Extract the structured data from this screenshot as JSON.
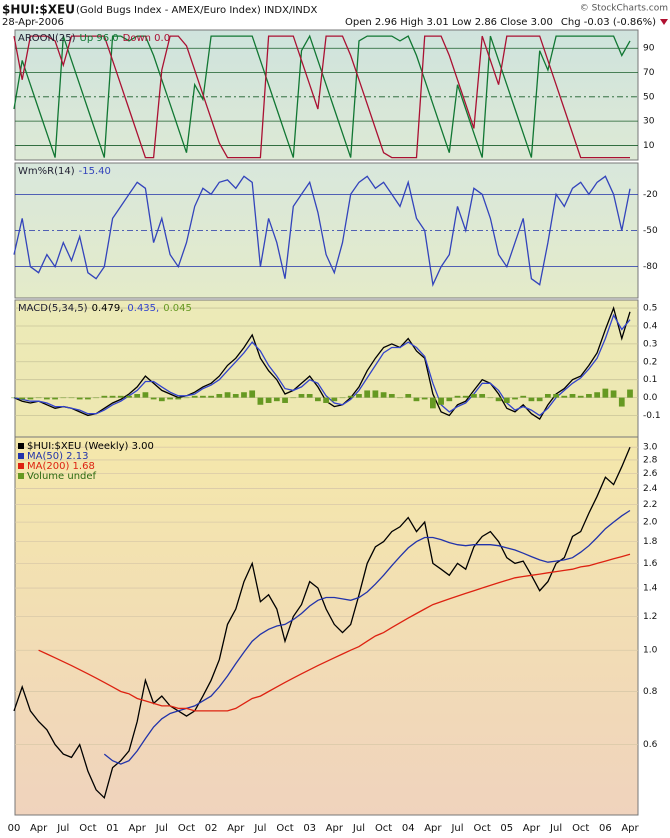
{
  "header": {
    "symbol": "$HUI:$XEU",
    "name": "(Gold Bugs Index - AMEX/Euro Index) INDX/INDX",
    "copyright": "© StockCharts.com",
    "date": "28-Apr-2006",
    "quote": "Open 2.96  High 3.01  Low 2.86  Close 3.00",
    "change": "Chg -0.03 (-0.86%)"
  },
  "chart_data": [
    {
      "type": "line",
      "title": "AROON(25)",
      "ylim": [
        -2,
        105
      ],
      "yticks": [
        10,
        30,
        50,
        70,
        90
      ],
      "grid": true,
      "grid_color": "#1a5c2a",
      "dashed_middle_grid": true,
      "series": [
        {
          "name": "Up 96.0",
          "color": "#117733",
          "values": [
            40,
            80,
            60,
            40,
            20,
            0,
            100,
            80,
            60,
            40,
            20,
            0,
            100,
            100,
            96,
            100,
            100,
            84,
            64,
            44,
            24,
            4,
            60,
            48,
            100,
            100,
            100,
            100,
            100,
            100,
            80,
            60,
            40,
            20,
            0,
            88,
            100,
            80,
            60,
            40,
            20,
            0,
            96,
            100,
            100,
            100,
            100,
            96,
            100,
            84,
            64,
            44,
            24,
            4,
            60,
            40,
            20,
            0,
            100,
            80,
            60,
            40,
            20,
            0,
            88,
            72,
            100,
            100,
            100,
            100,
            100,
            100,
            100,
            100,
            84,
            96
          ]
        },
        {
          "name": "Down 0.0",
          "color": "#aa1133",
          "values": [
            100,
            64,
            100,
            100,
            100,
            96,
            76,
            100,
            100,
            100,
            100,
            100,
            80,
            60,
            40,
            20,
            0,
            0,
            72,
            100,
            100,
            92,
            72,
            52,
            32,
            12,
            0,
            0,
            0,
            0,
            0,
            100,
            100,
            100,
            100,
            80,
            60,
            40,
            100,
            100,
            100,
            84,
            64,
            44,
            24,
            4,
            0,
            0,
            0,
            0,
            100,
            100,
            100,
            84,
            64,
            44,
            24,
            100,
            80,
            60,
            100,
            100,
            100,
            100,
            100,
            80,
            60,
            40,
            20,
            0,
            0,
            0,
            0,
            0,
            0,
            0
          ]
        }
      ]
    },
    {
      "type": "line",
      "title": "Wm%R(14)",
      "ylim": [
        -106,
        6
      ],
      "yticks": [
        -20,
        -50,
        -80
      ],
      "grid": true,
      "grid_color": "#2233aa",
      "dashed_middle_grid": true,
      "series": [
        {
          "name": "-15.40",
          "color": "#3344bb",
          "values": [
            -70,
            -40,
            -80,
            -85,
            -70,
            -80,
            -60,
            -75,
            -55,
            -85,
            -90,
            -80,
            -40,
            -30,
            -20,
            -10,
            -15,
            -60,
            -40,
            -70,
            -80,
            -60,
            -30,
            -15,
            -20,
            -10,
            -8,
            -15,
            -5,
            -10,
            -80,
            -40,
            -60,
            -90,
            -30,
            -20,
            -10,
            -35,
            -70,
            -85,
            -60,
            -20,
            -10,
            -5,
            -15,
            -10,
            -20,
            -30,
            -10,
            -40,
            -50,
            -95,
            -80,
            -70,
            -30,
            -50,
            -15,
            -20,
            -40,
            -70,
            -80,
            -60,
            -40,
            -90,
            -95,
            -60,
            -20,
            -30,
            -15,
            -10,
            -20,
            -10,
            -5,
            -20,
            -50,
            -15.4
          ]
        }
      ]
    },
    {
      "type": "line",
      "title": "MACD(5,34,5)",
      "ylim": [
        -0.22,
        0.545
      ],
      "yticks": [
        {
          "value": -0.1,
          "label": "-0.1"
        },
        {
          "value": 0,
          "label": "0.0"
        },
        0.1,
        0.2,
        0.3,
        0.4,
        0.5
      ],
      "grid": true,
      "grid_color": "#c9c49a",
      "series": [
        {
          "name": "0.479,",
          "color": "#000000",
          "values": [
            0.0,
            -0.02,
            -0.03,
            -0.02,
            -0.04,
            -0.06,
            -0.05,
            -0.06,
            -0.08,
            -0.1,
            -0.09,
            -0.06,
            -0.03,
            -0.01,
            0.02,
            0.06,
            0.12,
            0.08,
            0.04,
            0.02,
            0.0,
            0.01,
            0.03,
            0.06,
            0.08,
            0.12,
            0.18,
            0.22,
            0.28,
            0.35,
            0.22,
            0.15,
            0.1,
            0.02,
            0.04,
            0.08,
            0.12,
            0.06,
            -0.02,
            -0.05,
            -0.04,
            0.0,
            0.06,
            0.15,
            0.22,
            0.28,
            0.3,
            0.28,
            0.33,
            0.26,
            0.22,
            0.02,
            -0.08,
            -0.1,
            -0.04,
            -0.02,
            0.04,
            0.1,
            0.08,
            0.02,
            -0.06,
            -0.08,
            -0.04,
            -0.09,
            -0.12,
            -0.04,
            0.02,
            0.05,
            0.1,
            0.12,
            0.18,
            0.25,
            0.38,
            0.5,
            0.33,
            0.479
          ]
        },
        {
          "name": "0.435,",
          "color": "#3344cc",
          "values": [
            0.0,
            -0.01,
            -0.02,
            -0.02,
            -0.03,
            -0.05,
            -0.05,
            -0.06,
            -0.07,
            -0.09,
            -0.09,
            -0.07,
            -0.04,
            -0.02,
            0.01,
            0.04,
            0.09,
            0.09,
            0.06,
            0.03,
            0.01,
            0.01,
            0.02,
            0.05,
            0.07,
            0.1,
            0.15,
            0.2,
            0.25,
            0.31,
            0.26,
            0.18,
            0.12,
            0.05,
            0.04,
            0.06,
            0.1,
            0.08,
            0.01,
            -0.03,
            -0.04,
            -0.01,
            0.04,
            0.11,
            0.18,
            0.25,
            0.28,
            0.28,
            0.31,
            0.28,
            0.23,
            0.08,
            -0.04,
            -0.08,
            -0.05,
            -0.03,
            0.02,
            0.08,
            0.08,
            0.04,
            -0.03,
            -0.07,
            -0.05,
            -0.07,
            -0.1,
            -0.06,
            0.0,
            0.04,
            0.08,
            0.11,
            0.16,
            0.22,
            0.33,
            0.46,
            0.38,
            0.435
          ]
        },
        {
          "name": "0.045",
          "color": "#669922",
          "style": "bar",
          "values": [
            0.0,
            -0.01,
            -0.01,
            0.0,
            -0.01,
            -0.01,
            0.0,
            0.0,
            -0.01,
            -0.01,
            0.0,
            0.01,
            0.01,
            0.01,
            0.01,
            0.02,
            0.03,
            -0.01,
            -0.02,
            -0.01,
            -0.01,
            0.0,
            0.01,
            0.01,
            0.01,
            0.02,
            0.03,
            0.02,
            0.03,
            0.04,
            -0.04,
            -0.03,
            -0.02,
            -0.03,
            0.0,
            0.02,
            0.02,
            -0.02,
            -0.03,
            -0.02,
            0.0,
            0.01,
            0.02,
            0.04,
            0.04,
            0.03,
            0.02,
            0.0,
            0.02,
            -0.02,
            -0.01,
            -0.06,
            -0.04,
            -0.02,
            0.01,
            0.01,
            0.02,
            0.02,
            0.0,
            -0.02,
            -0.03,
            -0.01,
            0.01,
            -0.02,
            -0.02,
            0.02,
            0.02,
            0.01,
            0.02,
            0.01,
            0.02,
            0.03,
            0.05,
            0.04,
            -0.05,
            0.045
          ]
        }
      ]
    },
    {
      "type": "line",
      "log_scale": true,
      "legend": "stacked",
      "ylim": [
        0.41,
        3.17
      ],
      "yticks": [
        0.6,
        0.8,
        {
          "value": 1,
          "label": "1.0"
        },
        1.2,
        1.4,
        1.6,
        1.8,
        {
          "value": 2,
          "label": "2.0"
        },
        2.2,
        2.4,
        2.6,
        2.8,
        {
          "value": 3,
          "label": "3.0"
        }
      ],
      "grid": true,
      "grid_color": "#d9c9a8",
      "categories": [
        "00",
        null,
        null,
        "Apr",
        null,
        null,
        "Jul",
        null,
        null,
        "Oct",
        null,
        null,
        "01",
        null,
        null,
        "Apr",
        null,
        null,
        "Jul",
        null,
        null,
        "Oct",
        null,
        null,
        "02",
        null,
        null,
        "Apr",
        null,
        null,
        "Jul",
        null,
        null,
        "Oct",
        null,
        null,
        "03",
        null,
        null,
        "Apr",
        null,
        null,
        "Jul",
        null,
        null,
        "Oct",
        null,
        null,
        "04",
        null,
        null,
        "Apr",
        null,
        null,
        "Jul",
        null,
        null,
        "Oct",
        null,
        null,
        "05",
        null,
        null,
        "Apr",
        null,
        null,
        "Jul",
        null,
        null,
        "Oct",
        null,
        null,
        "06",
        null,
        null,
        "Apr"
      ],
      "series": [
        {
          "name": "$HUI:$XEU (Weekly) 3.00",
          "color": "#000000",
          "values": [
            0.72,
            0.82,
            0.72,
            0.68,
            0.65,
            0.6,
            0.57,
            0.56,
            0.6,
            0.52,
            0.47,
            0.45,
            0.53,
            0.55,
            0.58,
            0.68,
            0.85,
            0.75,
            0.78,
            0.74,
            0.72,
            0.7,
            0.72,
            0.78,
            0.85,
            0.95,
            1.15,
            1.25,
            1.45,
            1.6,
            1.3,
            1.35,
            1.25,
            1.05,
            1.2,
            1.28,
            1.45,
            1.4,
            1.25,
            1.15,
            1.1,
            1.15,
            1.35,
            1.6,
            1.75,
            1.8,
            1.9,
            1.95,
            2.05,
            1.9,
            2.0,
            1.6,
            1.55,
            1.5,
            1.6,
            1.55,
            1.75,
            1.85,
            1.9,
            1.8,
            1.65,
            1.6,
            1.62,
            1.5,
            1.38,
            1.45,
            1.6,
            1.65,
            1.85,
            1.9,
            2.1,
            2.3,
            2.55,
            2.45,
            2.7,
            3.0
          ]
        },
        {
          "name": "MA(50) 2.13",
          "color": "#2233aa",
          "values": [
            null,
            null,
            null,
            null,
            null,
            null,
            null,
            null,
            null,
            null,
            null,
            0.57,
            0.55,
            0.54,
            0.55,
            0.58,
            0.62,
            0.66,
            0.69,
            0.71,
            0.72,
            0.73,
            0.74,
            0.76,
            0.78,
            0.82,
            0.87,
            0.93,
            0.99,
            1.05,
            1.09,
            1.12,
            1.14,
            1.15,
            1.18,
            1.22,
            1.27,
            1.31,
            1.33,
            1.33,
            1.32,
            1.31,
            1.33,
            1.37,
            1.43,
            1.5,
            1.58,
            1.66,
            1.74,
            1.8,
            1.84,
            1.84,
            1.82,
            1.79,
            1.77,
            1.76,
            1.77,
            1.77,
            1.77,
            1.76,
            1.74,
            1.72,
            1.69,
            1.66,
            1.63,
            1.61,
            1.62,
            1.63,
            1.65,
            1.7,
            1.76,
            1.84,
            1.93,
            2.0,
            2.07,
            2.13
          ]
        },
        {
          "name": "MA(200) 1.68",
          "color": "#dd2211",
          "values": [
            null,
            null,
            null,
            1.0,
            0.98,
            0.96,
            0.94,
            0.92,
            0.9,
            0.88,
            0.86,
            0.84,
            0.82,
            0.8,
            0.79,
            0.77,
            0.76,
            0.75,
            0.74,
            0.74,
            0.73,
            0.73,
            0.72,
            0.72,
            0.72,
            0.72,
            0.72,
            0.73,
            0.75,
            0.77,
            0.78,
            0.8,
            0.82,
            0.84,
            0.86,
            0.88,
            0.9,
            0.92,
            0.94,
            0.96,
            0.98,
            1.0,
            1.02,
            1.05,
            1.08,
            1.1,
            1.13,
            1.16,
            1.19,
            1.22,
            1.25,
            1.28,
            1.3,
            1.32,
            1.34,
            1.36,
            1.38,
            1.4,
            1.42,
            1.44,
            1.46,
            1.48,
            1.49,
            1.5,
            1.51,
            1.52,
            1.53,
            1.54,
            1.55,
            1.57,
            1.58,
            1.6,
            1.62,
            1.64,
            1.66,
            1.68
          ]
        }
      ],
      "annotations": [
        "Volume undef"
      ]
    }
  ]
}
